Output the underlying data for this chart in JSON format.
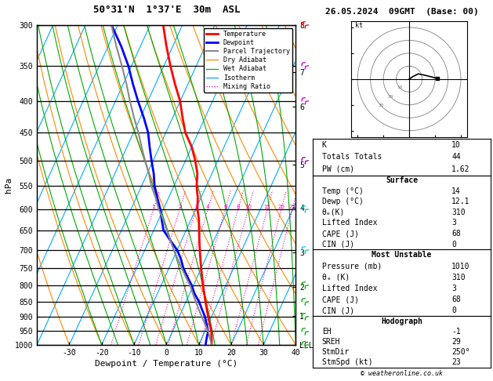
{
  "title_left": "50°31'N  1°37'E  30m  ASL",
  "title_right": "26.05.2024  09GMT  (Base: 00)",
  "xlabel": "Dewpoint / Temperature (°C)",
  "copyright": "© weatheronline.co.uk",
  "p_min": 300,
  "p_max": 1000,
  "T_min": -40,
  "T_max": 40,
  "skew_factor": 45,
  "pressure_ticks": [
    300,
    350,
    400,
    450,
    500,
    550,
    600,
    650,
    700,
    750,
    800,
    850,
    900,
    950,
    1000
  ],
  "temp_ticks": [
    -30,
    -20,
    -10,
    0,
    10,
    20,
    30,
    40
  ],
  "temp_profile_p": [
    1000,
    975,
    950,
    925,
    900,
    875,
    850,
    825,
    800,
    775,
    750,
    725,
    700,
    675,
    650,
    625,
    600,
    575,
    550,
    525,
    500,
    475,
    450,
    425,
    400,
    375,
    350,
    325,
    300
  ],
  "temp_profile_T": [
    14,
    13.0,
    12.0,
    10.5,
    9.0,
    7.5,
    6.0,
    4.5,
    3.0,
    1.5,
    0.0,
    -1.5,
    -3.0,
    -4.5,
    -6.0,
    -7.5,
    -9.5,
    -11.0,
    -13.0,
    -14.5,
    -17.0,
    -20.0,
    -24.0,
    -27.0,
    -30.0,
    -34.0,
    -38.0,
    -42.0,
    -46.0
  ],
  "dewp_profile_p": [
    1000,
    975,
    950,
    925,
    900,
    875,
    850,
    825,
    800,
    775,
    750,
    725,
    700,
    675,
    650,
    625,
    600,
    575,
    550,
    525,
    500,
    475,
    450,
    425,
    400,
    375,
    350,
    325,
    300
  ],
  "dewp_profile_T": [
    12.1,
    11.5,
    11.0,
    9.5,
    8.0,
    6.0,
    4.0,
    1.5,
    -0.5,
    -3.0,
    -5.5,
    -7.5,
    -10.0,
    -13.5,
    -17.0,
    -19.0,
    -21.0,
    -23.5,
    -26.0,
    -28.0,
    -30.5,
    -33.0,
    -35.5,
    -39.0,
    -43.0,
    -47.0,
    -51.0,
    -56.0,
    -62.0
  ],
  "parc_profile_p": [
    1000,
    975,
    950,
    925,
    900,
    875,
    850,
    825,
    800,
    775,
    750,
    725,
    700,
    675,
    650,
    625,
    600,
    575,
    550,
    525,
    500,
    475,
    450,
    425,
    400,
    375,
    350,
    325,
    300
  ],
  "parc_profile_T": [
    14,
    12.5,
    11.0,
    9.0,
    7.0,
    5.0,
    3.0,
    1.0,
    -1.0,
    -3.5,
    -6.0,
    -8.5,
    -11.0,
    -13.5,
    -16.0,
    -18.5,
    -21.5,
    -24.0,
    -27.0,
    -29.5,
    -32.5,
    -35.5,
    -38.5,
    -42.0,
    -45.5,
    -49.0,
    -53.0,
    -57.5,
    -62.0
  ],
  "isotherm_step": 10,
  "dry_adiabat_Ts": [
    -40,
    -30,
    -20,
    -10,
    0,
    10,
    20,
    30,
    40,
    50,
    60,
    70,
    80,
    90,
    100,
    110,
    120
  ],
  "wet_adiabat_Ts": [
    -20,
    -15,
    -10,
    -5,
    0,
    5,
    10,
    15,
    20,
    25,
    30,
    35,
    40
  ],
  "mixing_ratio_vals": [
    1,
    2,
    3,
    4,
    6,
    8,
    10,
    15,
    20,
    25
  ],
  "legend_items": [
    {
      "label": "Temperature",
      "color": "#ff0000",
      "ls": "solid",
      "lw": 2.0
    },
    {
      "label": "Dewpoint",
      "color": "#0000ff",
      "ls": "solid",
      "lw": 2.0
    },
    {
      "label": "Parcel Trajectory",
      "color": "#888888",
      "ls": "solid",
      "lw": 1.5
    },
    {
      "label": "Dry Adiabat",
      "color": "#ff8800",
      "ls": "solid",
      "lw": 0.9
    },
    {
      "label": "Wet Adiabat",
      "color": "#00aa00",
      "ls": "solid",
      "lw": 0.9
    },
    {
      "label": "Isotherm",
      "color": "#00aaff",
      "ls": "solid",
      "lw": 0.9
    },
    {
      "label": "Mixing Ratio",
      "color": "#ff00aa",
      "ls": "dotted",
      "lw": 0.9
    }
  ],
  "km_tick_labels": [
    "1",
    "2",
    "3",
    "4",
    "5",
    "6",
    "7",
    "8",
    "LCL"
  ],
  "km_tick_pressures": [
    895,
    800,
    700,
    590,
    500,
    400,
    350,
    292,
    1000
  ],
  "stats_K": 10,
  "stats_TT": 44,
  "stats_PW": 1.62,
  "surf_temp": 14,
  "surf_dewp": 12.1,
  "surf_theta_e": 310,
  "surf_li": 3,
  "surf_cape": 68,
  "surf_cin": 0,
  "mu_pressure": 1010,
  "mu_theta_e": 310,
  "mu_li": 3,
  "mu_cape": 68,
  "mu_cin": 0,
  "hodo_EH": -1,
  "hodo_SREH": 29,
  "hodo_StmDir": "250°",
  "hodo_StmSpd": 23,
  "hodograph_u": [
    0.0,
    3.0,
    7.0,
    12.0,
    18.0,
    22.0
  ],
  "hodograph_v": [
    0.0,
    2.0,
    4.0,
    3.0,
    1.5,
    0.5
  ],
  "hodo_circle_radii": [
    10,
    20,
    30,
    40
  ],
  "hodo_circle_labels_r": [
    10,
    20,
    30
  ],
  "hodo_circle_labels_text": [
    "10",
    "20",
    "30"
  ],
  "barb_data": [
    {
      "p": 300,
      "u": 20,
      "v": 15,
      "color": "#ff0000"
    },
    {
      "p": 350,
      "u": 20,
      "v": 10,
      "color": "#cc00cc"
    },
    {
      "p": 400,
      "u": 18,
      "v": 8,
      "color": "#cc00cc"
    },
    {
      "p": 500,
      "u": 15,
      "v": 5,
      "color": "#8800aa"
    },
    {
      "p": 600,
      "u": 12,
      "v": 3,
      "color": "#00cccc"
    },
    {
      "p": 700,
      "u": 10,
      "v": 2,
      "color": "#00cccc"
    },
    {
      "p": 800,
      "u": 8,
      "v": 1,
      "color": "#00aa00"
    },
    {
      "p": 850,
      "u": 6,
      "v": 1,
      "color": "#00aa00"
    },
    {
      "p": 900,
      "u": 5,
      "v": 0,
      "color": "#00aa00"
    },
    {
      "p": 950,
      "u": 4,
      "v": 0,
      "color": "#00aa00"
    },
    {
      "p": 1000,
      "u": 3,
      "v": 0,
      "color": "#00aa00"
    }
  ]
}
